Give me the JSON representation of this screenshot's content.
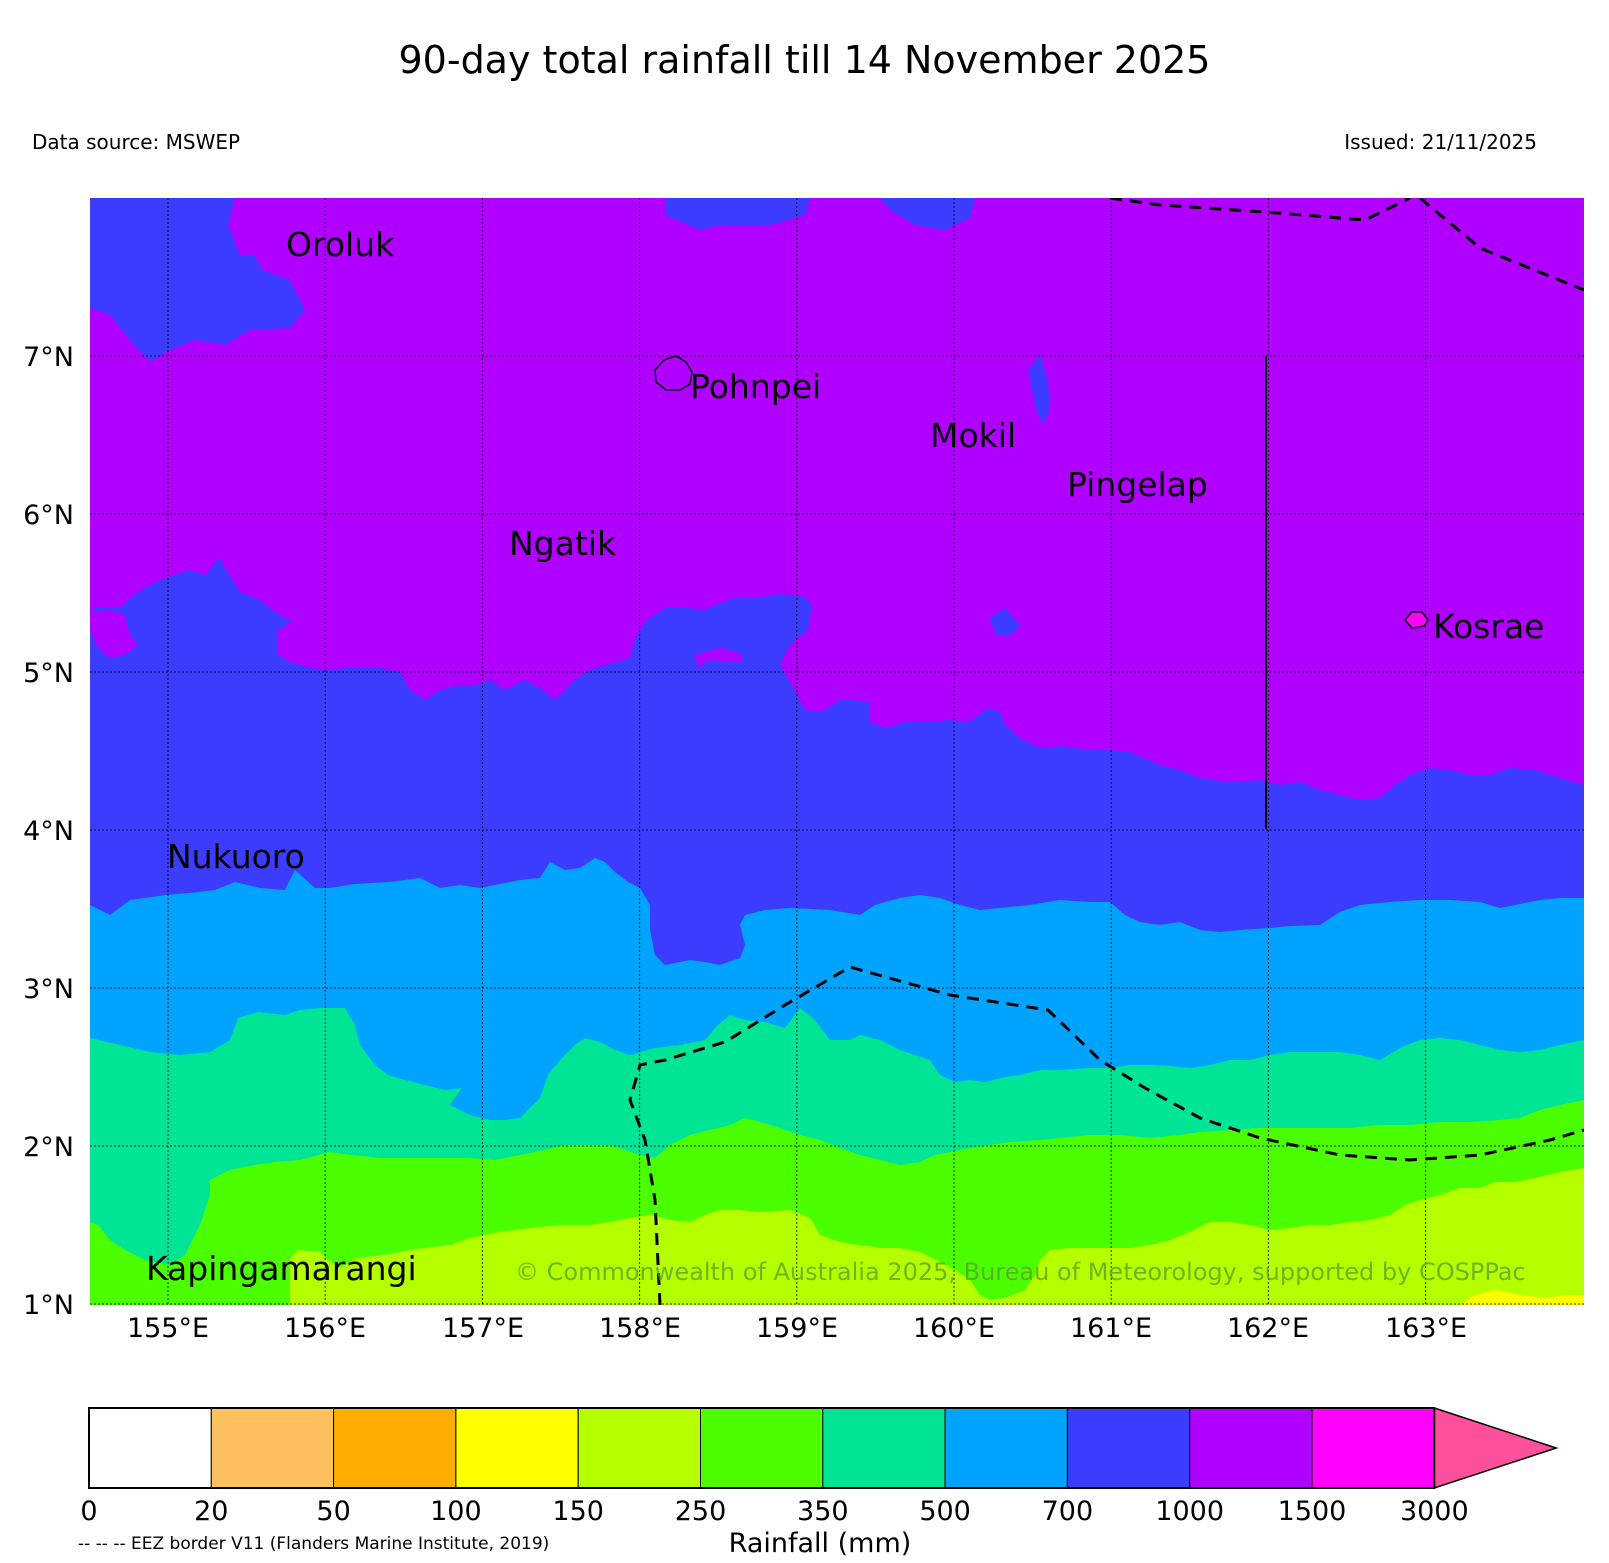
{
  "title": "90-day total rainfall till 14 November 2025",
  "data_source": "Data source: MSWEP",
  "issued": "Issued: 21/11/2025",
  "copyright": "© Commonwealth of Australia 2025, Bureau of Meteorology, supported by COSPPac",
  "map": {
    "lon_labels": [
      "155°E",
      "156°E",
      "157°E",
      "158°E",
      "159°E",
      "160°E",
      "161°E",
      "162°E",
      "163°E"
    ],
    "lat_labels": [
      "7°N",
      "6°N",
      "5°N",
      "4°N",
      "3°N",
      "2°N",
      "1°N"
    ],
    "places": [
      {
        "name": "Oroluk"
      },
      {
        "name": "Pohnpei"
      },
      {
        "name": "Mokil"
      },
      {
        "name": "Pingelap"
      },
      {
        "name": "Ngatik"
      },
      {
        "name": "Kosrae"
      },
      {
        "name": "Nukuoro"
      },
      {
        "name": "Kapingamarangi"
      }
    ]
  },
  "legend": {
    "ticks": [
      "0",
      "20",
      "50",
      "100",
      "150",
      "250",
      "350",
      "500",
      "700",
      "1000",
      "1500",
      "3000"
    ],
    "label": "Rainfall (mm)",
    "colors": [
      "#ffffff",
      "#ffc060",
      "#ffad00",
      "#ffff00",
      "#b4ff00",
      "#4cff00",
      "#00e496",
      "#00a4ff",
      "#3c3cff",
      "#b000ff",
      "#ff00ff",
      "#ff509c"
    ]
  },
  "colors": {
    "band_1000_1500": "#b000ff",
    "band_700_1000": "#3c3cff",
    "band_500_700": "#00a4ff",
    "band_350_500": "#00e496",
    "band_250_350": "#4cff00",
    "band_150_250": "#b4ff00",
    "band_100_150": "#ffff00"
  },
  "eez_note": "-- -- -- EEZ border V11 (Flanders Marine Institute, 2019)"
}
